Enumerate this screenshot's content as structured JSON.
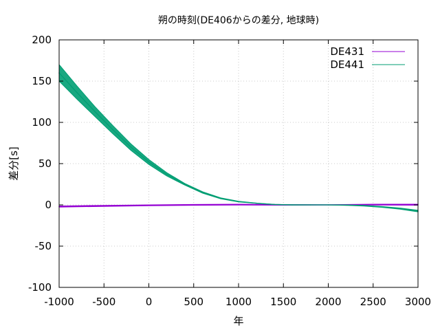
{
  "chart_data": {
    "type": "line",
    "title": "朔の時刻(DE406からの差分, 地球時)",
    "xlabel": "年",
    "ylabel": "差分[s]",
    "xlim": [
      -1000,
      3000
    ],
    "ylim": [
      -100,
      200
    ],
    "x_ticks": [
      -1000,
      -500,
      0,
      500,
      1000,
      1500,
      2000,
      2500,
      3000
    ],
    "y_ticks": [
      -100,
      -50,
      0,
      50,
      100,
      150,
      200
    ],
    "grid": true,
    "legend_position": "top-right",
    "series": [
      {
        "name": "DE431",
        "color": "#9400d3",
        "x": [
          -1000,
          -500,
          0,
          500,
          1000,
          1500,
          2000,
          2500,
          3000
        ],
        "y": [
          -2.0,
          -1.2,
          -0.5,
          0.0,
          0.3,
          0.0,
          0.0,
          0.3,
          0.2
        ],
        "y_upper": [
          -1.3,
          -0.6,
          0.0,
          0.5,
          0.8,
          0.4,
          0.2,
          0.8,
          0.8
        ],
        "y_lower": [
          -2.7,
          -1.8,
          -1.0,
          -0.5,
          -0.2,
          -0.4,
          -0.2,
          -0.2,
          -0.4
        ]
      },
      {
        "name": "DE441",
        "color": "#009e73",
        "x": [
          -1000,
          -800,
          -600,
          -400,
          -200,
          0,
          200,
          400,
          600,
          800,
          1000,
          1200,
          1400,
          1600,
          1800,
          2000,
          2200,
          2400,
          2600,
          2800,
          3000
        ],
        "y": [
          160,
          136,
          113,
          91,
          70,
          52,
          37,
          25,
          15,
          8,
          4,
          2,
          0.5,
          0,
          0,
          0,
          -0.3,
          -1,
          -2.5,
          -4.5,
          -7.5
        ],
        "y_upper": [
          170,
          144,
          119,
          96,
          74,
          55,
          39,
          26,
          15.8,
          8.6,
          4.4,
          2.2,
          0.7,
          0.2,
          0.1,
          0.1,
          0,
          -0.6,
          -2.0,
          -3.8,
          -6.5
        ],
        "y_lower": [
          150,
          128,
          107,
          86,
          66,
          49,
          35,
          24,
          14.2,
          7.4,
          3.6,
          1.8,
          0.3,
          -0.2,
          -0.1,
          -0.1,
          -0.6,
          -1.4,
          -3.0,
          -5.2,
          -8.5
        ]
      }
    ]
  }
}
